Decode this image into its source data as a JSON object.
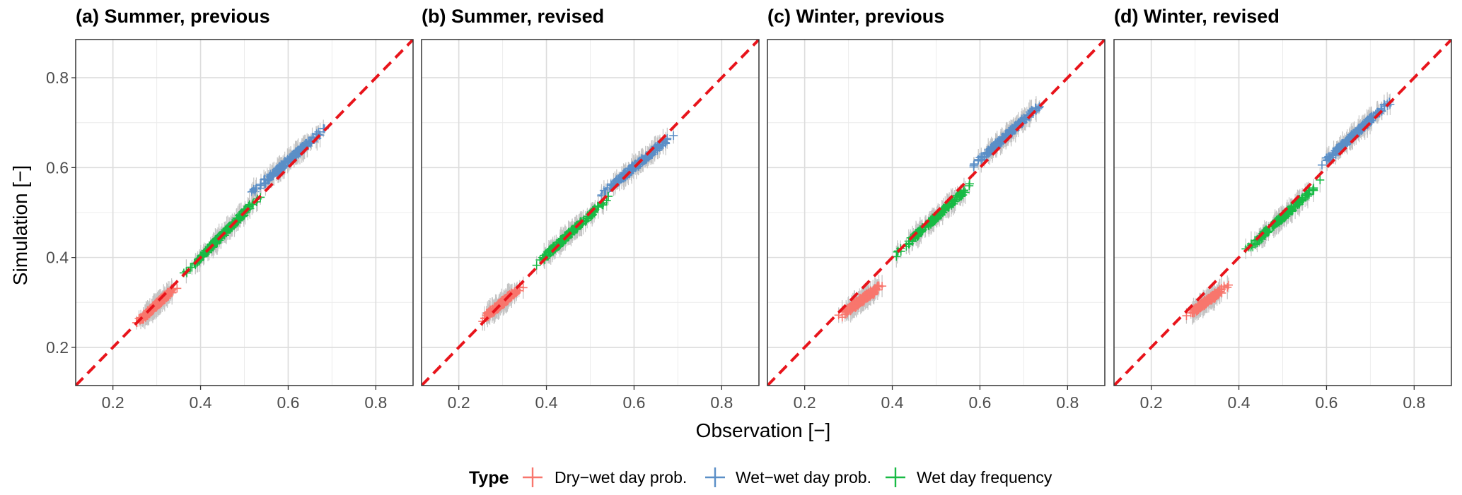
{
  "figure": {
    "xlabel": "Observation [−]",
    "ylabel": "Simulation [−]"
  },
  "legend": {
    "title": "Type",
    "position": "bottom",
    "entries": [
      {
        "label": "Dry−wet day prob.",
        "color": "#F8766D"
      },
      {
        "label": "Wet−wet day prob.",
        "color": "#5B8FC7"
      },
      {
        "label": "Wet day frequency",
        "color": "#18BA45"
      }
    ]
  },
  "reference_line": {
    "type": "1:1",
    "color": "#E8141B",
    "style": "dashed"
  },
  "chart_data": [
    {
      "type": "scatter",
      "title": "(a) Summer, previous",
      "xlim": [
        0.115,
        0.885
      ],
      "ylim": [
        0.115,
        0.885
      ],
      "xticks": [
        0.2,
        0.4,
        0.6,
        0.8
      ],
      "yticks": [
        0.2,
        0.4,
        0.6,
        0.8
      ],
      "grid": true,
      "series": [
        {
          "name": "Dry−wet day prob.",
          "x": [
            0.25,
            0.35
          ],
          "y": [
            0.25,
            0.34
          ],
          "x_range": [
            0.25,
            0.35
          ],
          "y_range": [
            0.25,
            0.34
          ]
        },
        {
          "name": "Wet−wet day prob.",
          "x": [
            0.5,
            0.7
          ],
          "y": [
            0.53,
            0.7
          ],
          "x_range": [
            0.5,
            0.7
          ],
          "y_range": [
            0.53,
            0.7
          ]
        },
        {
          "name": "Wet day frequency",
          "x": [
            0.35,
            0.55
          ],
          "y": [
            0.35,
            0.55
          ],
          "x_range": [
            0.35,
            0.55
          ],
          "y_range": [
            0.35,
            0.55
          ]
        }
      ]
    },
    {
      "type": "scatter",
      "title": "(b) Summer, revised",
      "xlim": [
        0.115,
        0.885
      ],
      "ylim": [
        0.115,
        0.885
      ],
      "xticks": [
        0.2,
        0.4,
        0.6,
        0.8
      ],
      "yticks": [
        0.2,
        0.4,
        0.6,
        0.8
      ],
      "grid": true,
      "series": [
        {
          "name": "Dry−wet day prob.",
          "x": [
            0.25,
            0.35
          ],
          "y": [
            0.26,
            0.34
          ],
          "x_range": [
            0.25,
            0.35
          ],
          "y_range": [
            0.26,
            0.34
          ]
        },
        {
          "name": "Wet−wet day prob.",
          "x": [
            0.5,
            0.71
          ],
          "y": [
            0.52,
            0.69
          ],
          "x_range": [
            0.5,
            0.71
          ],
          "y_range": [
            0.52,
            0.69
          ]
        },
        {
          "name": "Wet day frequency",
          "x": [
            0.35,
            0.55
          ],
          "y": [
            0.36,
            0.54
          ],
          "x_range": [
            0.35,
            0.55
          ],
          "y_range": [
            0.36,
            0.54
          ]
        }
      ]
    },
    {
      "type": "scatter",
      "title": "(c) Winter, previous",
      "xlim": [
        0.115,
        0.885
      ],
      "ylim": [
        0.115,
        0.885
      ],
      "xticks": [
        0.2,
        0.4,
        0.6,
        0.8
      ],
      "yticks": [
        0.2,
        0.4,
        0.6,
        0.8
      ],
      "grid": true,
      "series": [
        {
          "name": "Dry−wet day prob.",
          "x": [
            0.28,
            0.38
          ],
          "y": [
            0.27,
            0.34
          ],
          "x_range": [
            0.28,
            0.38
          ],
          "y_range": [
            0.27,
            0.34
          ]
        },
        {
          "name": "Wet−wet day prob.",
          "x": [
            0.57,
            0.76
          ],
          "y": [
            0.59,
            0.76
          ],
          "x_range": [
            0.57,
            0.76
          ],
          "y_range": [
            0.59,
            0.76
          ]
        },
        {
          "name": "Wet day frequency",
          "x": [
            0.4,
            0.6
          ],
          "y": [
            0.4,
            0.58
          ],
          "x_range": [
            0.4,
            0.6
          ],
          "y_range": [
            0.4,
            0.58
          ]
        }
      ]
    },
    {
      "type": "scatter",
      "title": "(d) Winter, revised",
      "xlim": [
        0.115,
        0.885
      ],
      "ylim": [
        0.115,
        0.885
      ],
      "xticks": [
        0.2,
        0.4,
        0.6,
        0.8
      ],
      "yticks": [
        0.2,
        0.4,
        0.6,
        0.8
      ],
      "grid": true,
      "series": [
        {
          "name": "Dry−wet day prob.",
          "x": [
            0.28,
            0.38
          ],
          "y": [
            0.27,
            0.34
          ],
          "x_range": [
            0.28,
            0.38
          ],
          "y_range": [
            0.27,
            0.34
          ]
        },
        {
          "name": "Wet−wet day prob.",
          "x": [
            0.57,
            0.76
          ],
          "y": [
            0.59,
            0.76
          ],
          "x_range": [
            0.57,
            0.76
          ],
          "y_range": [
            0.59,
            0.76
          ]
        },
        {
          "name": "Wet day frequency",
          "x": [
            0.4,
            0.6
          ],
          "y": [
            0.4,
            0.58
          ],
          "x_range": [
            0.4,
            0.6
          ],
          "y_range": [
            0.4,
            0.58
          ]
        }
      ]
    }
  ]
}
